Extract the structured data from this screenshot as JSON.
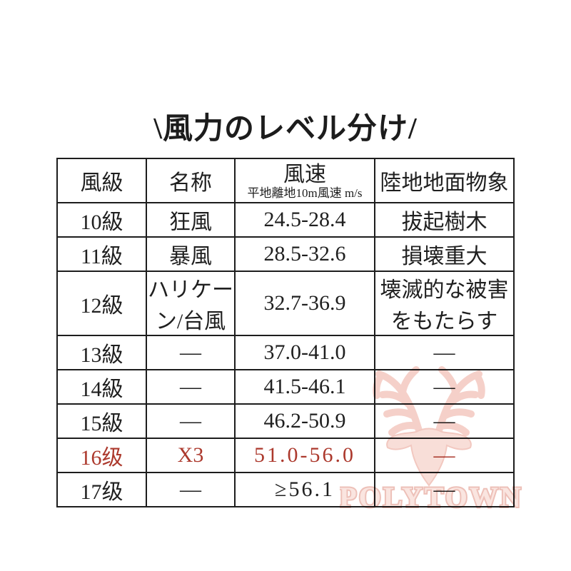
{
  "page": {
    "background": "#ffffff"
  },
  "title": "\\風力のレベル分け/",
  "table": {
    "headers": [
      {
        "label": "風級"
      },
      {
        "label": "名称"
      },
      {
        "label": "風速",
        "sub": "平地離地10m風速 m/s"
      },
      {
        "label": "陸地地面物象"
      }
    ],
    "rows": [
      {
        "level": "10級",
        "name": "狂風",
        "speed": "24.5-28.4",
        "effect": "拔起樹木",
        "highlight": false,
        "small_name": false,
        "small_effect": false,
        "spaced": false
      },
      {
        "level": "11級",
        "name": "暴風",
        "speed": "28.5-32.6",
        "effect": "損壊重大",
        "highlight": false,
        "small_name": false,
        "small_effect": false,
        "spaced": false
      },
      {
        "level": "12級",
        "name": "ハリケーン/台風",
        "speed": "32.7-36.9",
        "effect": "壊滅的な被害をもたらす",
        "highlight": false,
        "small_name": true,
        "small_effect": true,
        "spaced": false
      },
      {
        "level": "13級",
        "name": "—",
        "speed": "37.0-41.0",
        "effect": "—",
        "highlight": false,
        "small_name": false,
        "small_effect": false,
        "spaced": false
      },
      {
        "level": "14級",
        "name": "—",
        "speed": "41.5-46.1",
        "effect": "—",
        "highlight": false,
        "small_name": false,
        "small_effect": false,
        "spaced": false
      },
      {
        "level": "15級",
        "name": "—",
        "speed": "46.2-50.9",
        "effect": "—",
        "highlight": false,
        "small_name": false,
        "small_effect": false,
        "spaced": false
      },
      {
        "level": "16级",
        "name": "X3",
        "speed": "51.0-56.0",
        "effect": "—",
        "highlight": true,
        "small_name": false,
        "small_effect": false,
        "spaced": true
      },
      {
        "level": "17级",
        "name": "—",
        "speed": "≥56.1",
        "effect": "—",
        "highlight": false,
        "small_name": false,
        "small_effect": false,
        "spaced": true
      }
    ]
  },
  "watermark": {
    "brand": "POLYTOWN",
    "logo": "deer-head-antlers"
  },
  "colors": {
    "text": "#1f1f1f",
    "border": "#1d1d1d",
    "highlight_red": "#ac392d",
    "watermark_pink": "#f7d8d2",
    "watermark_outline": "#edc0b8"
  }
}
